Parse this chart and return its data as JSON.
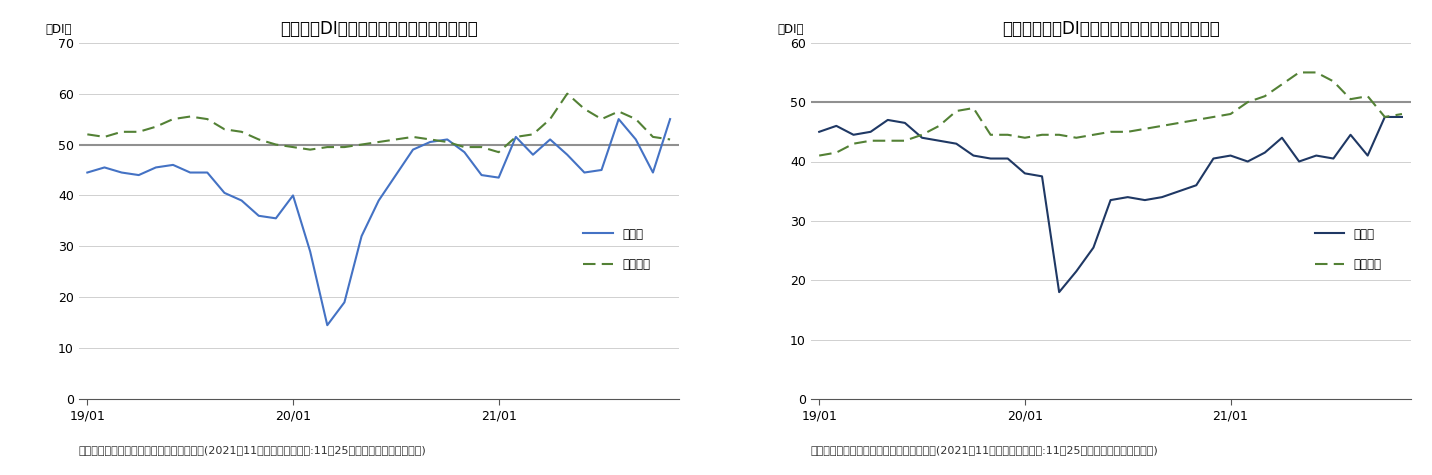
{
  "chart1": {
    "title": "現状判断DI（企業動向関連）の内訳の推移",
    "ylabel": "（DI）",
    "ylim": [
      0,
      70
    ],
    "yticks": [
      0,
      10,
      20,
      30,
      40,
      50,
      60,
      70
    ],
    "reference_line": 50,
    "xtick_labels": [
      "19/01",
      "20/01",
      "21/01"
    ],
    "manufacturing": [
      44.5,
      45.5,
      44.5,
      44.0,
      45.5,
      46.0,
      44.5,
      44.5,
      40.5,
      39.0,
      36.0,
      35.5,
      40.0,
      29.0,
      14.5,
      19.0,
      32.0,
      39.0,
      44.0,
      49.0,
      50.5,
      51.0,
      48.5,
      44.0,
      43.5,
      51.5,
      48.0,
      51.0,
      48.0,
      44.5,
      45.0,
      55.0,
      51.0,
      44.5,
      55.0
    ],
    "non_manufacturing": [
      52.0,
      51.5,
      52.5,
      52.5,
      53.5,
      55.0,
      55.5,
      55.0,
      53.0,
      52.5,
      51.0,
      50.0,
      49.5,
      49.0,
      49.5,
      49.5,
      50.0,
      50.5,
      51.0,
      51.5,
      51.0,
      50.5,
      49.5,
      49.5,
      48.5,
      51.5,
      52.0,
      55.0,
      60.0,
      57.0,
      55.0,
      56.5,
      55.0,
      51.5,
      51.0
    ],
    "manufacturing_color": "#4472c4",
    "non_manufacturing_color": "#538135",
    "caption": "（出所）内閣府「景気ウォッチャー調査」(2021年11月調査、調査期間:11月25日から月末、季節調整値)"
  },
  "chart2": {
    "title": "現状水準判断DI（企業動向関連）の内訳の推移",
    "ylabel": "（DI）",
    "ylim": [
      0,
      60
    ],
    "yticks": [
      0,
      10,
      20,
      30,
      40,
      50,
      60
    ],
    "reference_line": 50,
    "xtick_labels": [
      "19/01",
      "20/01",
      "21/01"
    ],
    "manufacturing": [
      45.0,
      46.0,
      44.5,
      45.0,
      47.0,
      46.5,
      44.0,
      43.5,
      43.0,
      41.0,
      40.5,
      40.5,
      38.0,
      37.5,
      18.0,
      21.5,
      25.5,
      33.5,
      34.0,
      33.5,
      34.0,
      35.0,
      36.0,
      40.5,
      41.0,
      40.0,
      41.5,
      44.0,
      40.0,
      41.0,
      40.5,
      44.5,
      41.0,
      47.5,
      47.5
    ],
    "non_manufacturing": [
      41.0,
      41.5,
      43.0,
      43.5,
      43.5,
      43.5,
      44.5,
      46.0,
      48.5,
      49.0,
      44.5,
      44.5,
      44.0,
      44.5,
      44.5,
      44.0,
      44.5,
      45.0,
      45.0,
      45.5,
      46.0,
      46.5,
      47.0,
      47.5,
      48.0,
      50.0,
      51.0,
      53.0,
      55.0,
      55.0,
      53.5,
      50.5,
      51.0,
      47.5,
      48.0
    ],
    "manufacturing_color": "#1f3864",
    "non_manufacturing_color": "#538135",
    "caption": "（出所）内閣府「景気ウォッチャー調査」(2021年11月調査、調査期間:11月25日から月末、季節調整値)"
  },
  "legend_manufacturing": "製造業",
  "legend_non_manufacturing": "非製造業",
  "n_points": 35,
  "grid_color": "#d0d0d0",
  "reference_line_color": "#909090",
  "background_color": "#ffffff",
  "title_fontsize": 12,
  "label_fontsize": 8.5,
  "tick_fontsize": 9,
  "caption_fontsize": 8
}
